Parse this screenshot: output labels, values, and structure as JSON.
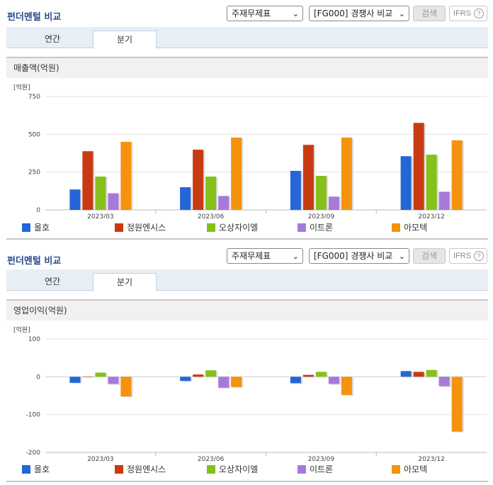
{
  "sections": [
    {
      "title": "펀더멘털 비교",
      "select1": "주재무제표",
      "select2": "[FG000] 경쟁사 비교",
      "search_label": "검색",
      "ifrs_label": "IFRS",
      "tabs": [
        "연간",
        "분기"
      ],
      "metric_label": "매출액(억원)"
    },
    {
      "title": "펀더멘털 비교",
      "select1": "주재무제표",
      "select2": "[FG000] 경쟁사 비교",
      "search_label": "검색",
      "ifrs_label": "IFRS",
      "tabs": [
        "연간",
        "분기"
      ],
      "metric_label": "영업이익(억원)"
    }
  ],
  "colors": {
    "series": [
      "#2566d6",
      "#c83a12",
      "#86c01a",
      "#a87ad8",
      "#f5920e"
    ]
  },
  "chart_data": [
    {
      "type": "bar",
      "unit_label": "[억원]",
      "categories": [
        "2023/03",
        "2023/06",
        "2023/09",
        "2023/12"
      ],
      "ylim": [
        0,
        750
      ],
      "yticks": [
        0,
        250,
        500,
        750
      ],
      "series": [
        {
          "name": "올호",
          "values": [
            135,
            150,
            258,
            355
          ]
        },
        {
          "name": "정원엔시스",
          "values": [
            388,
            398,
            430,
            575
          ]
        },
        {
          "name": "오상자이엘",
          "values": [
            220,
            220,
            225,
            365
          ]
        },
        {
          "name": "이트론",
          "values": [
            110,
            92,
            88,
            120
          ]
        },
        {
          "name": "아모텍",
          "values": [
            450,
            478,
            478,
            460
          ]
        }
      ]
    },
    {
      "type": "bar",
      "unit_label": "[억원]",
      "categories": [
        "2023/03",
        "2023/06",
        "2023/09",
        "2023/12"
      ],
      "ylim": [
        -200,
        100
      ],
      "yticks": [
        100,
        0,
        -100,
        -200
      ],
      "series": [
        {
          "name": "올호",
          "values": [
            -16,
            -11,
            -17,
            15
          ]
        },
        {
          "name": "정원엔시스",
          "values": [
            0,
            6,
            5,
            13
          ]
        },
        {
          "name": "오상자이엘",
          "values": [
            11,
            17,
            13,
            18
          ]
        },
        {
          "name": "이트론",
          "values": [
            -19,
            -29,
            -19,
            -25
          ]
        },
        {
          "name": "아모텍",
          "values": [
            -52,
            -27,
            -48,
            -145
          ]
        }
      ]
    }
  ]
}
